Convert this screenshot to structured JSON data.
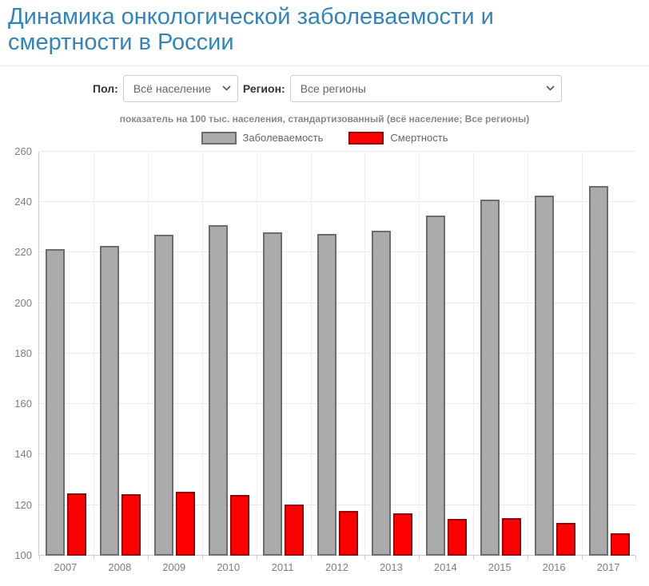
{
  "header": {
    "title": "Динамика онкологической заболеваемости и смертности в России"
  },
  "controls": {
    "sex_label": "Пол:",
    "sex_value": "Всё население",
    "region_label": "Регион:",
    "region_value": "Все регионы"
  },
  "subtitle": "показатель на 100 тыс. населения, стандартизованный (всё население; Все регионы)",
  "colors": {
    "title": "#3383bd",
    "incidence_fill": "#ababab",
    "incidence_border": "#6d6d6d",
    "mortality_fill": "#ff0000",
    "mortality_border": "#990000",
    "axis_text": "#7d7d7d"
  },
  "chart_data": {
    "type": "bar",
    "title": "",
    "xlabel": "",
    "ylabel": "",
    "categories": [
      "2007",
      "2008",
      "2009",
      "2010",
      "2011",
      "2012",
      "2013",
      "2014",
      "2015",
      "2016",
      "2017"
    ],
    "series": [
      {
        "name": "Заболеваемость",
        "color": "#ababab",
        "border": "#6d6d6d",
        "values": [
          221.3,
          222.7,
          227.1,
          231.0,
          228.1,
          227.5,
          228.8,
          234.8,
          241.0,
          242.6,
          246.4
        ]
      },
      {
        "name": "Смертность",
        "color": "#ff0000",
        "border": "#990000",
        "values": [
          124.5,
          124.2,
          125.3,
          124.0,
          120.1,
          117.6,
          116.6,
          114.4,
          114.8,
          113.0,
          108.9
        ]
      }
    ],
    "ylim": [
      100,
      260
    ],
    "ytick_step": 20,
    "grid": true,
    "legend_position": "top-center"
  }
}
